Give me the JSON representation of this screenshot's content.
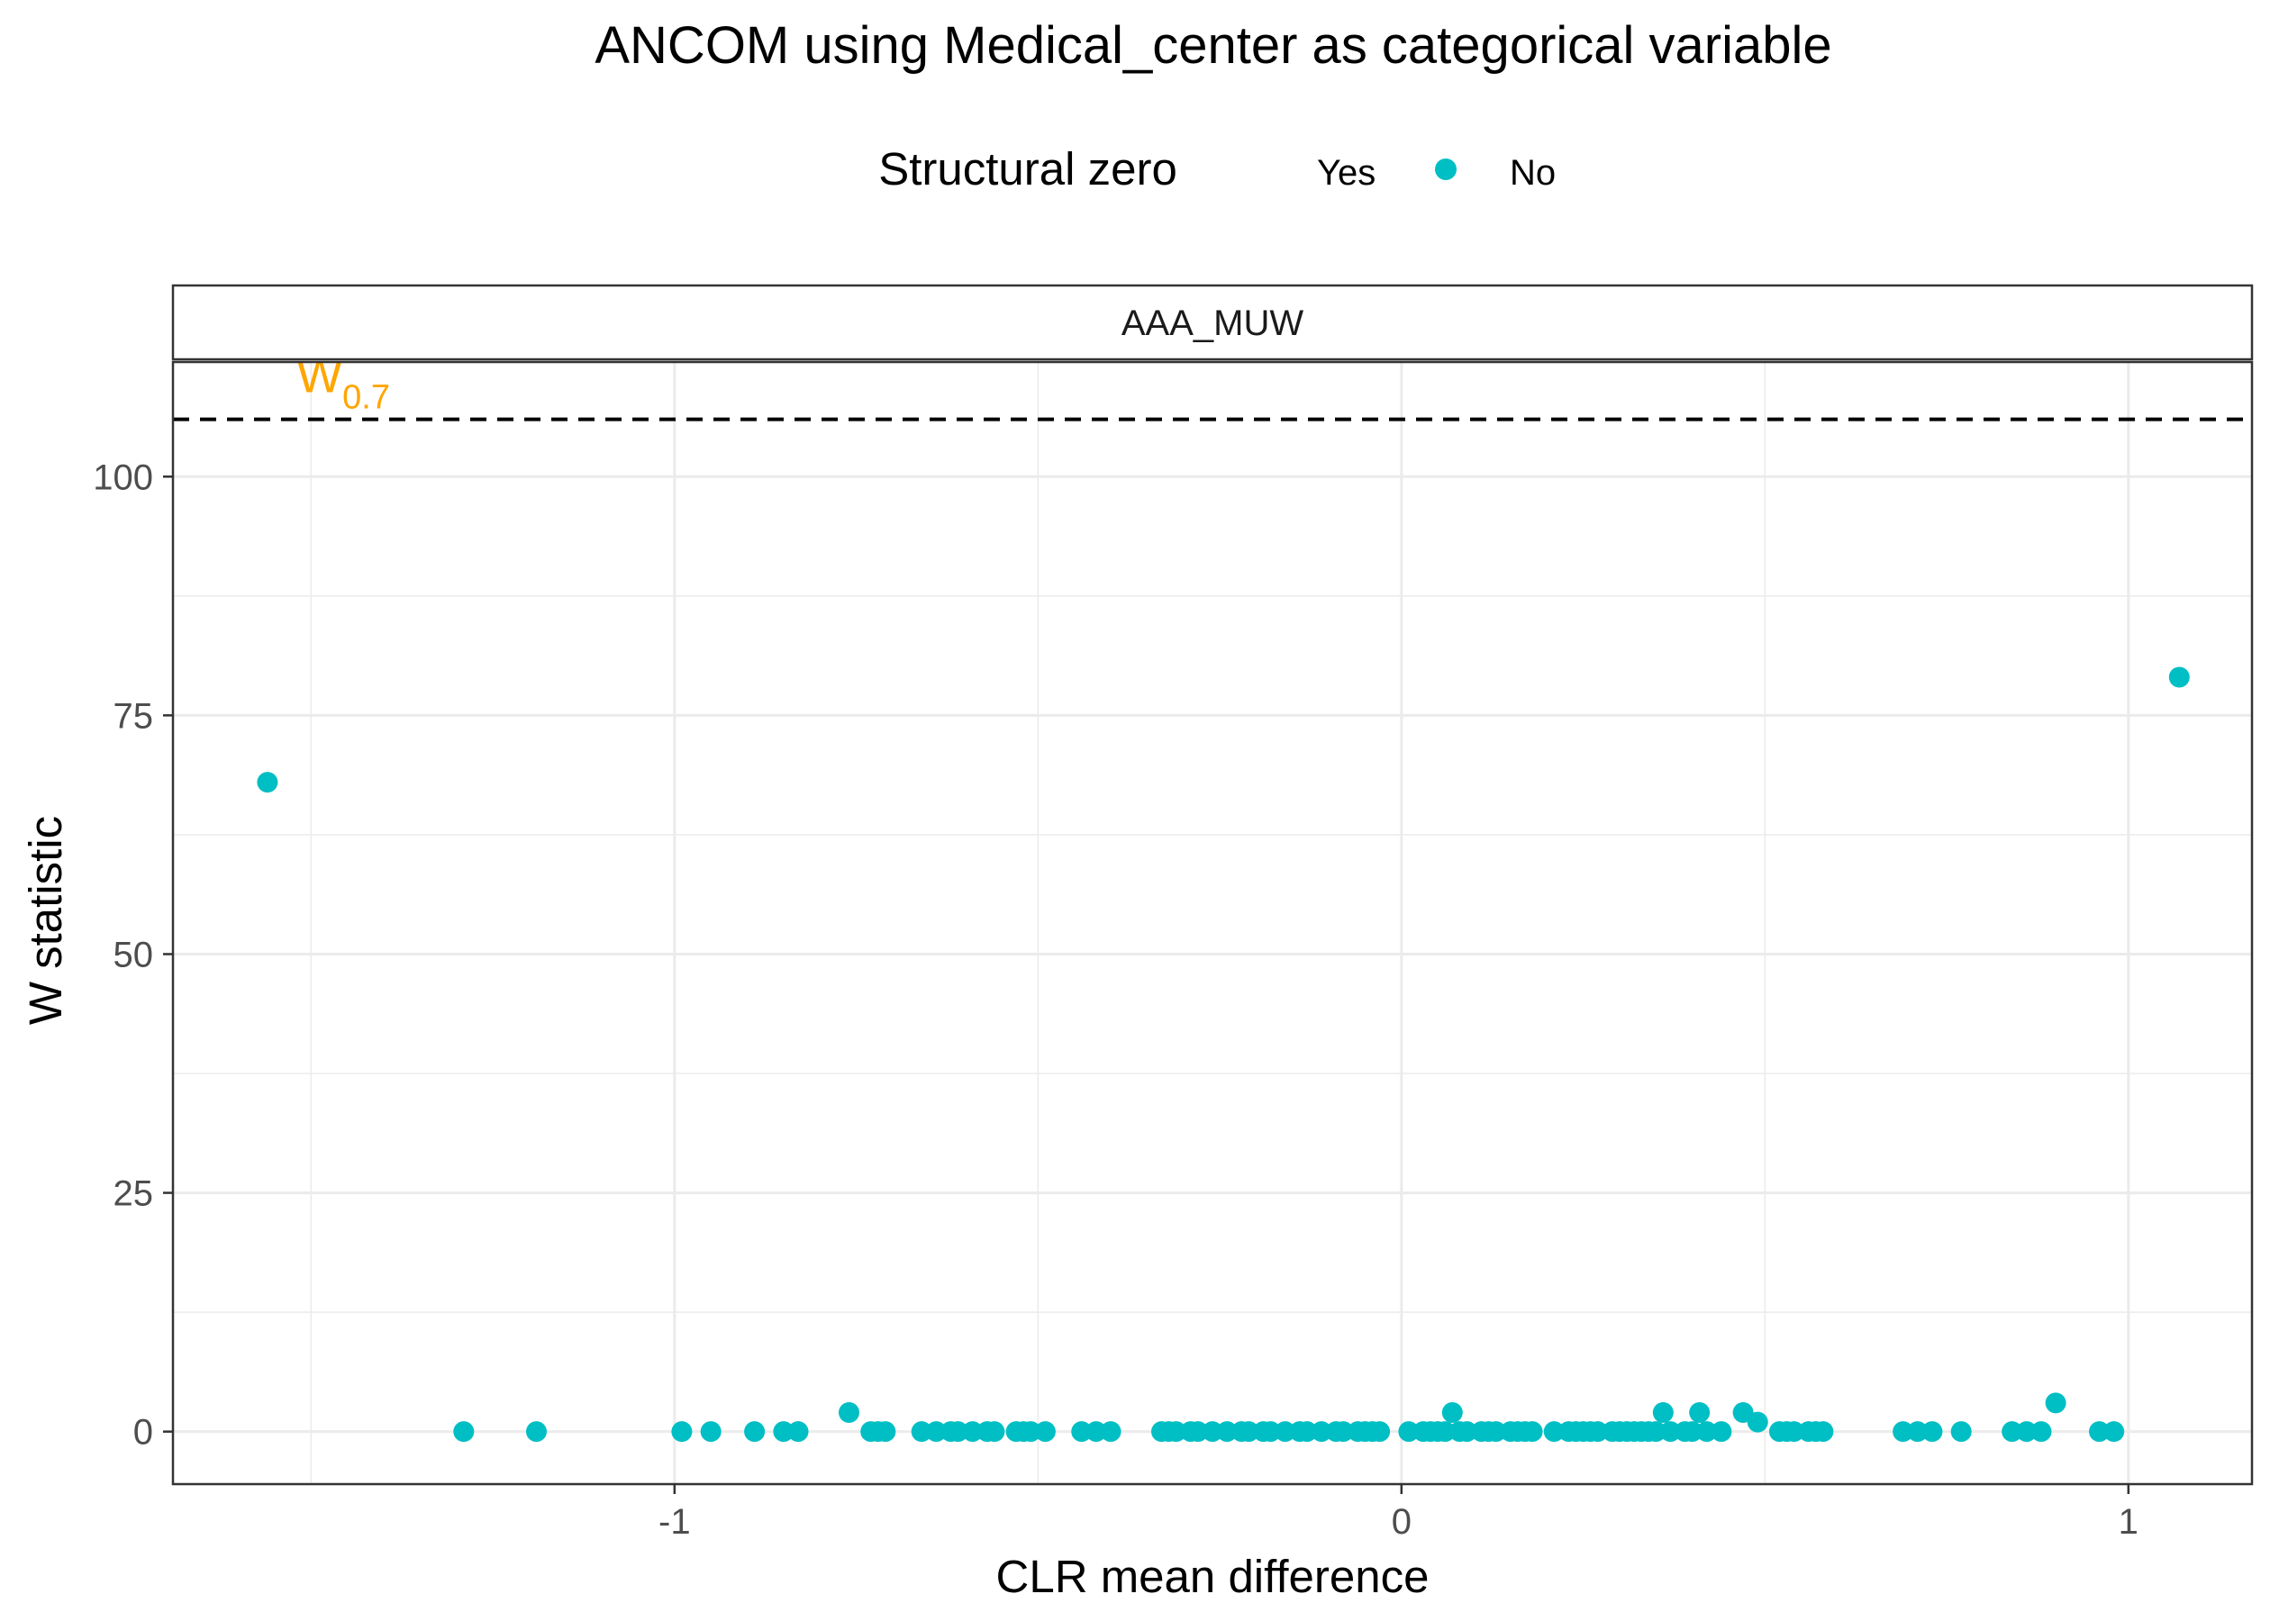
{
  "chart_data": {
    "type": "scatter",
    "title": "ANCOM using Medical_center as categorical variable",
    "xlabel": "CLR mean difference",
    "ylabel": "W statistic",
    "facet": "AAA_MUW",
    "legend": {
      "title": "Structural zero",
      "placement": "top",
      "entries": [
        {
          "label": "Yes",
          "color": null
        },
        {
          "label": "No",
          "color": "#00BFC4"
        }
      ]
    },
    "xlim": [
      -1.69,
      1.17
    ],
    "ylim": [
      -5.5,
      112
    ],
    "x_ticks": [
      -1,
      0,
      1
    ],
    "x_tick_labels": [
      "-1",
      "0",
      "1"
    ],
    "y_ticks": [
      0,
      25,
      50,
      75,
      100
    ],
    "y_tick_labels": [
      "0",
      "25",
      "50",
      "75",
      "100"
    ],
    "grid": true,
    "threshold": {
      "y": 106,
      "label_main": "W",
      "label_sub": "0.7",
      "color": "#FFA500",
      "style": "dashed"
    },
    "series": [
      {
        "name": "No",
        "color": "#00BFC4",
        "points": [
          [
            -1.56,
            68
          ],
          [
            1.07,
            79
          ],
          [
            -1.29,
            0
          ],
          [
            -1.19,
            0
          ],
          [
            -0.99,
            0
          ],
          [
            -0.95,
            0
          ],
          [
            -0.89,
            0
          ],
          [
            -0.85,
            0
          ],
          [
            -0.83,
            0
          ],
          [
            -0.76,
            2
          ],
          [
            -0.73,
            0
          ],
          [
            -0.72,
            0
          ],
          [
            -0.71,
            0
          ],
          [
            -0.66,
            0
          ],
          [
            -0.64,
            0
          ],
          [
            -0.62,
            0
          ],
          [
            -0.61,
            0
          ],
          [
            -0.59,
            0
          ],
          [
            -0.57,
            0
          ],
          [
            -0.56,
            0
          ],
          [
            -0.53,
            0
          ],
          [
            -0.52,
            0
          ],
          [
            -0.51,
            0
          ],
          [
            -0.49,
            0
          ],
          [
            -0.44,
            0
          ],
          [
            -0.42,
            0
          ],
          [
            -0.4,
            0
          ],
          [
            -0.33,
            0
          ],
          [
            -0.32,
            0
          ],
          [
            -0.31,
            0
          ],
          [
            -0.29,
            0
          ],
          [
            -0.28,
            0
          ],
          [
            -0.26,
            0
          ],
          [
            -0.24,
            0
          ],
          [
            -0.22,
            0
          ],
          [
            -0.21,
            0
          ],
          [
            -0.19,
            0
          ],
          [
            -0.18,
            0
          ],
          [
            -0.16,
            0
          ],
          [
            -0.14,
            0
          ],
          [
            -0.13,
            0
          ],
          [
            -0.11,
            0
          ],
          [
            -0.09,
            0
          ],
          [
            -0.08,
            0
          ],
          [
            -0.06,
            0
          ],
          [
            -0.05,
            0
          ],
          [
            -0.04,
            0
          ],
          [
            -0.03,
            0
          ],
          [
            0.01,
            0
          ],
          [
            0.03,
            0
          ],
          [
            0.04,
            0
          ],
          [
            0.05,
            0
          ],
          [
            0.06,
            0
          ],
          [
            0.07,
            2
          ],
          [
            0.08,
            0
          ],
          [
            0.09,
            0
          ],
          [
            0.11,
            0
          ],
          [
            0.12,
            0
          ],
          [
            0.13,
            0
          ],
          [
            0.15,
            0
          ],
          [
            0.16,
            0
          ],
          [
            0.17,
            0
          ],
          [
            0.18,
            0
          ],
          [
            0.21,
            0
          ],
          [
            0.23,
            0
          ],
          [
            0.24,
            0
          ],
          [
            0.25,
            0
          ],
          [
            0.26,
            0
          ],
          [
            0.27,
            0
          ],
          [
            0.29,
            0
          ],
          [
            0.3,
            0
          ],
          [
            0.31,
            0
          ],
          [
            0.32,
            0
          ],
          [
            0.33,
            0
          ],
          [
            0.34,
            0
          ],
          [
            0.35,
            0
          ],
          [
            0.36,
            2
          ],
          [
            0.37,
            0
          ],
          [
            0.39,
            0
          ],
          [
            0.4,
            0
          ],
          [
            0.41,
            2
          ],
          [
            0.42,
            0
          ],
          [
            0.44,
            0
          ],
          [
            0.47,
            2
          ],
          [
            0.49,
            1
          ],
          [
            0.52,
            0
          ],
          [
            0.53,
            0
          ],
          [
            0.54,
            0
          ],
          [
            0.56,
            0
          ],
          [
            0.57,
            0
          ],
          [
            0.58,
            0
          ],
          [
            0.69,
            0
          ],
          [
            0.71,
            0
          ],
          [
            0.73,
            0
          ],
          [
            0.77,
            0
          ],
          [
            0.84,
            0
          ],
          [
            0.86,
            0
          ],
          [
            0.88,
            0
          ],
          [
            0.9,
            3
          ],
          [
            0.96,
            0
          ],
          [
            0.98,
            0
          ]
        ]
      }
    ]
  }
}
